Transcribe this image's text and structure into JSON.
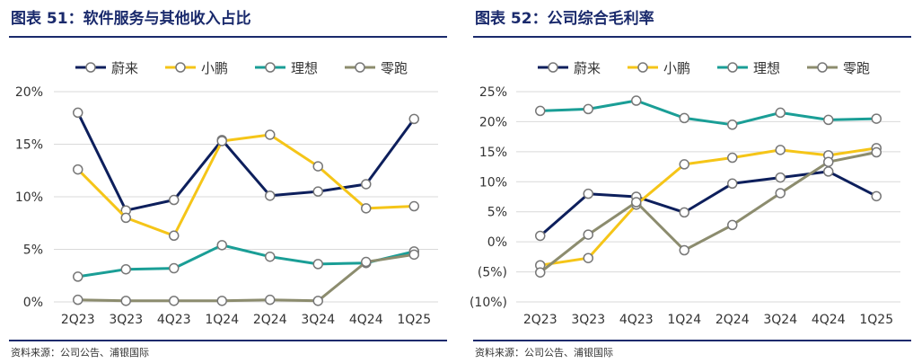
{
  "left": {
    "title": "图表 51：软件服务与其他收入占比",
    "source": "资料来源：公司公告、浦银国际"
  },
  "right": {
    "title": "图表 52：公司综合毛利率",
    "source": "资料来源：公司公告、浦银国际"
  },
  "chart_data": [
    {
      "type": "line",
      "title": "图表 51：软件服务与其他收入占比",
      "categories": [
        "2Q23",
        "3Q23",
        "4Q23",
        "1Q24",
        "2Q24",
        "3Q24",
        "4Q24",
        "1Q25"
      ],
      "yticks": [
        "0%",
        "5%",
        "10%",
        "15%",
        "20%"
      ],
      "ytick_values": [
        0,
        5,
        10,
        15,
        20
      ],
      "ylim": [
        0,
        20
      ],
      "grid": true,
      "legend_position": "top",
      "series": [
        {
          "name": "蔚来",
          "color": "#0d1f5c",
          "values": [
            18.0,
            8.7,
            9.7,
            15.4,
            10.1,
            10.5,
            11.2,
            17.4
          ]
        },
        {
          "name": "小鹏",
          "color": "#f5c518",
          "values": [
            12.6,
            8.0,
            6.3,
            15.3,
            15.9,
            12.9,
            8.9,
            9.1
          ]
        },
        {
          "name": "理想",
          "color": "#1a9e96",
          "values": [
            2.4,
            3.1,
            3.2,
            5.4,
            4.3,
            3.6,
            3.7,
            4.8
          ]
        },
        {
          "name": "零跑",
          "color": "#8c8c6e",
          "values": [
            0.2,
            0.1,
            0.1,
            0.1,
            0.2,
            0.1,
            3.8,
            4.5
          ]
        }
      ]
    },
    {
      "type": "line",
      "title": "图表 52：公司综合毛利率",
      "categories": [
        "2Q23",
        "3Q23",
        "4Q23",
        "1Q24",
        "2Q24",
        "3Q24",
        "4Q24",
        "1Q25"
      ],
      "yticks": [
        "(10%)",
        "(5%)",
        "0%",
        "5%",
        "10%",
        "15%",
        "20%",
        "25%"
      ],
      "ytick_values": [
        -10,
        -5,
        0,
        5,
        10,
        15,
        20,
        25
      ],
      "ylim": [
        -10,
        25
      ],
      "grid": true,
      "legend_position": "top",
      "series": [
        {
          "name": "蔚来",
          "color": "#0d1f5c",
          "values": [
            1.0,
            8.0,
            7.5,
            4.9,
            9.7,
            10.7,
            11.7,
            7.6
          ]
        },
        {
          "name": "小鹏",
          "color": "#f5c518",
          "values": [
            -3.9,
            -2.7,
            6.2,
            12.9,
            14.0,
            15.3,
            14.4,
            15.6
          ]
        },
        {
          "name": "理想",
          "color": "#1a9e96",
          "values": [
            21.8,
            22.1,
            23.5,
            20.6,
            19.5,
            21.5,
            20.3,
            20.5
          ]
        },
        {
          "name": "零跑",
          "color": "#8c8c6e",
          "values": [
            -5.1,
            1.2,
            6.6,
            -1.4,
            2.8,
            8.1,
            13.3,
            14.9
          ]
        }
      ]
    }
  ]
}
